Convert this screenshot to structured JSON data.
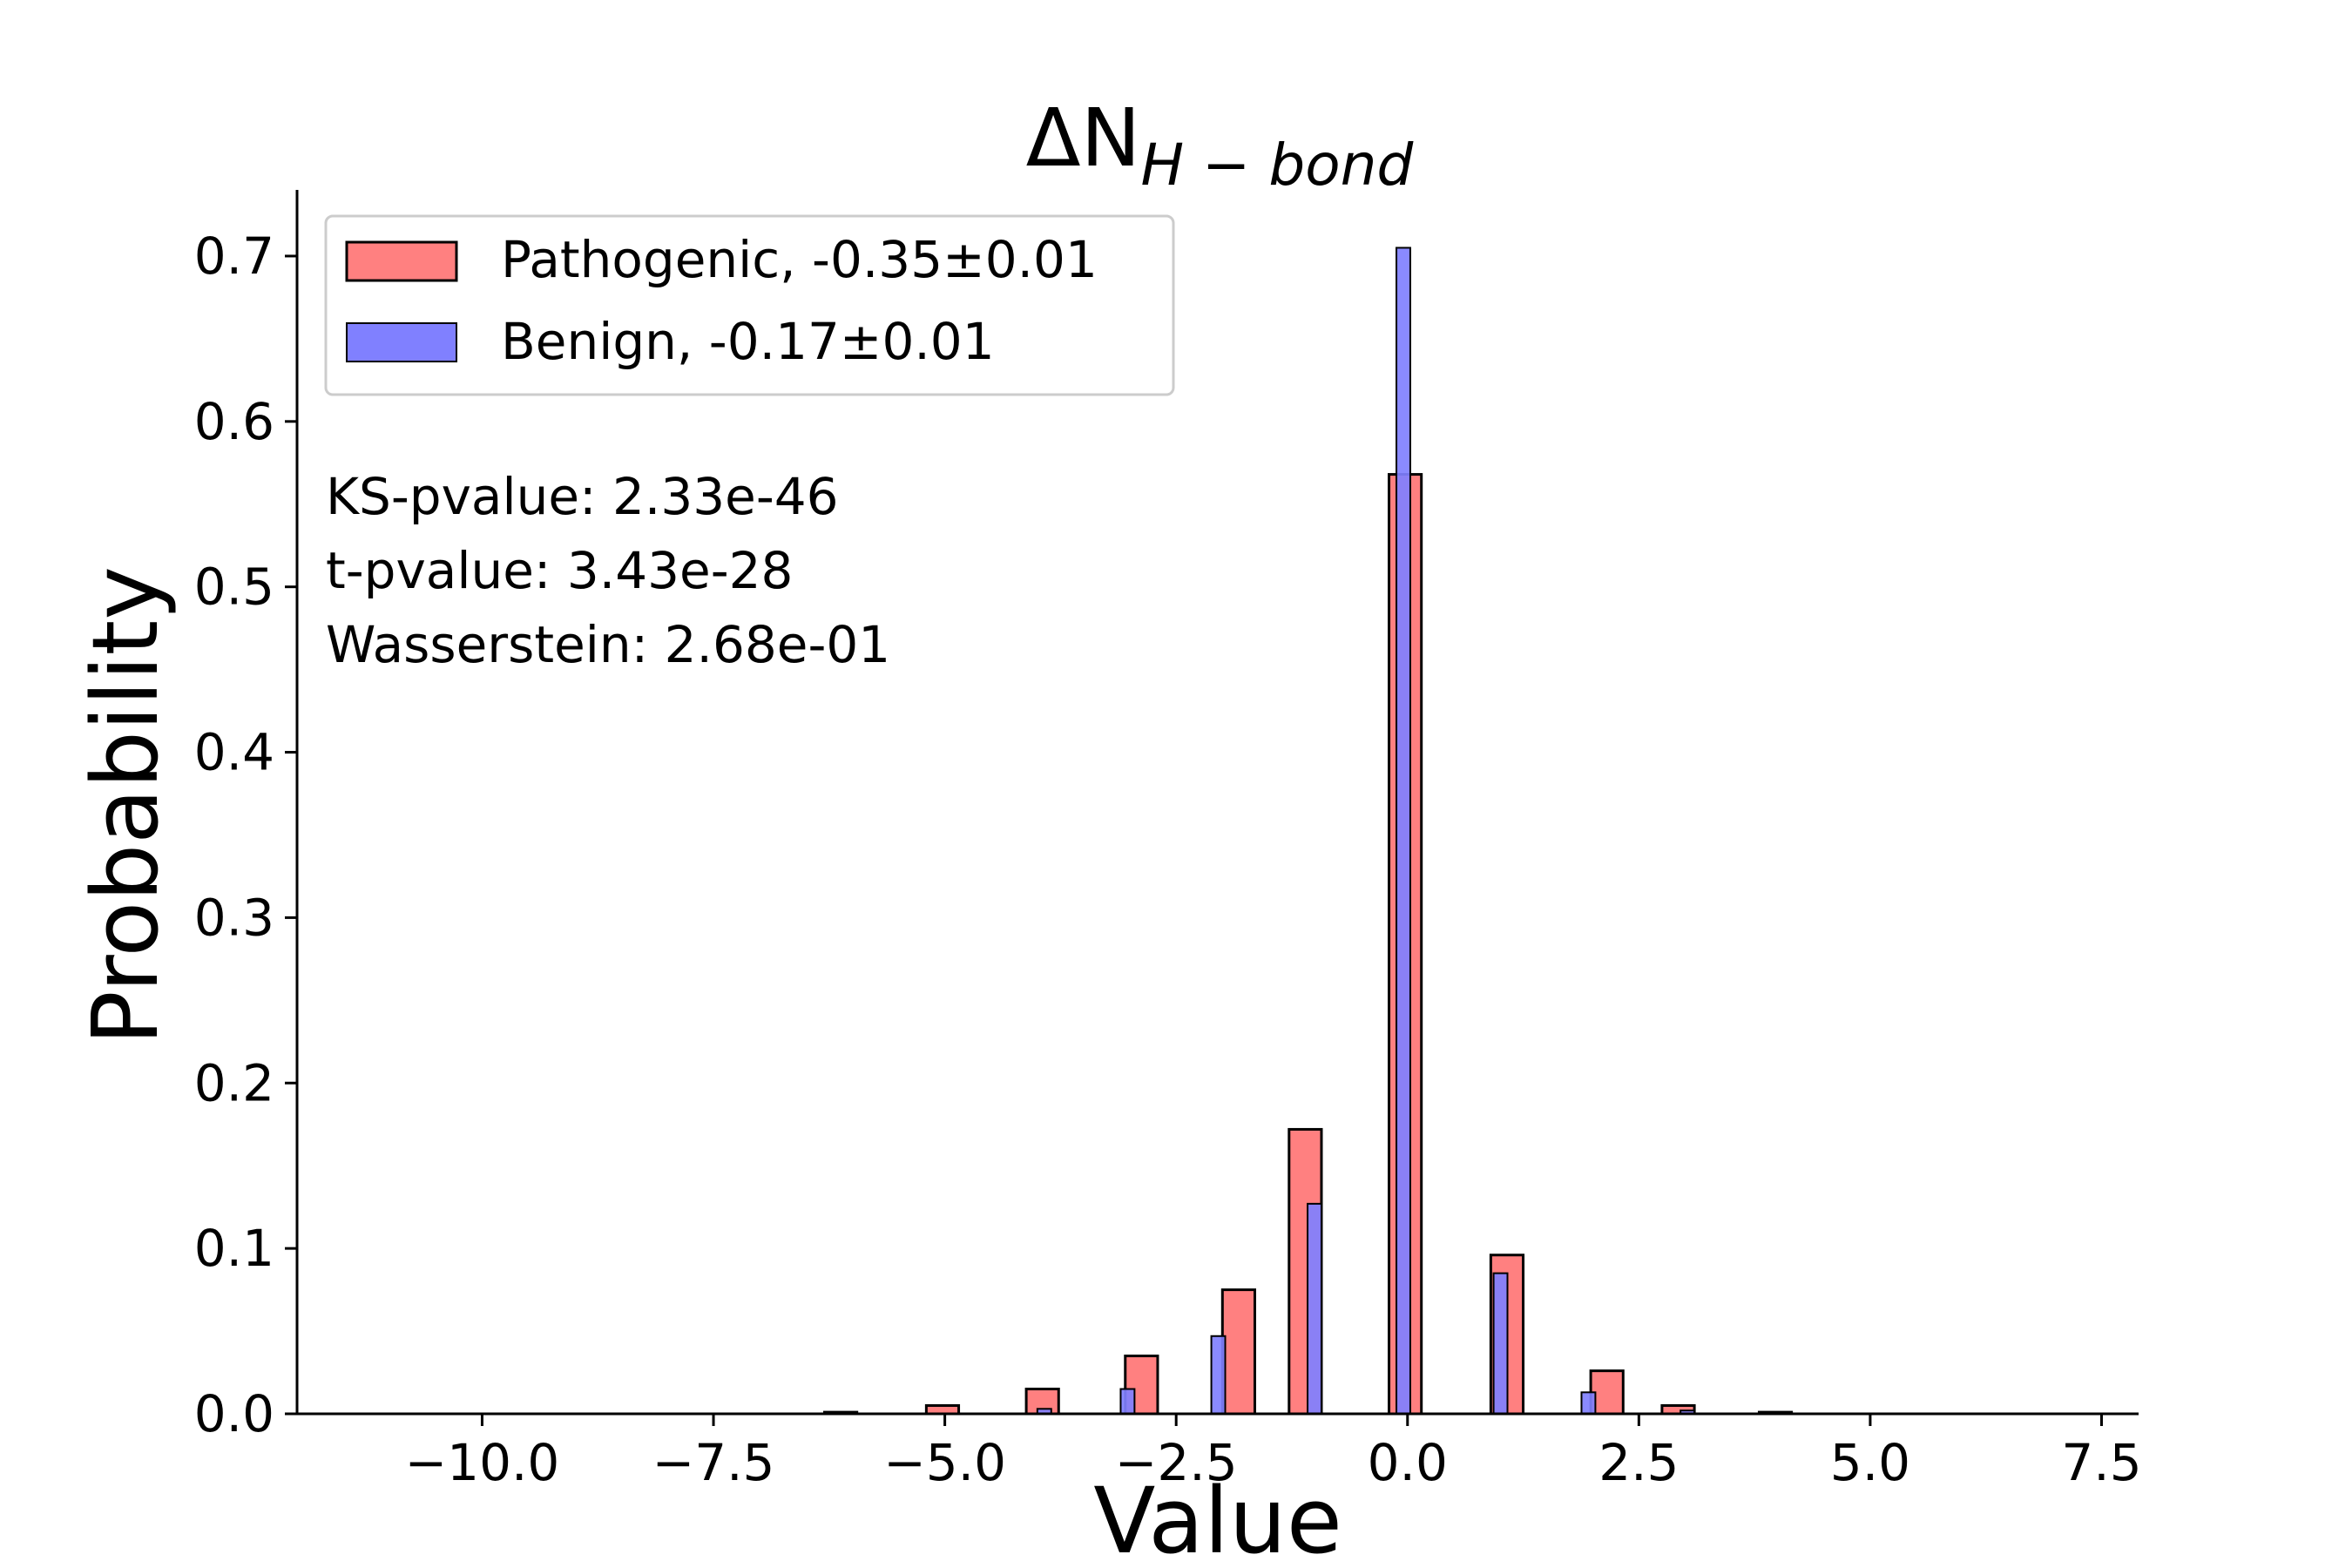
{
  "chart_data": {
    "type": "bar",
    "title": "ΔN",
    "title_subscript": "H − bond",
    "xlabel": "Value",
    "ylabel": "Probability",
    "xlim": [
      -12.0,
      7.9
    ],
    "ylim": [
      0,
      0.74
    ],
    "x_ticks": [
      -10.0,
      -7.5,
      -5.0,
      -2.5,
      0.0,
      2.5,
      5.0,
      7.5
    ],
    "x_tick_labels": [
      "−10.0",
      "−7.5",
      "−5.0",
      "−2.5",
      "0.0",
      "2.5",
      "5.0",
      "7.5"
    ],
    "y_ticks": [
      0.0,
      0.1,
      0.2,
      0.3,
      0.4,
      0.5,
      0.6,
      0.7
    ],
    "y_tick_labels": [
      "0.0",
      "0.1",
      "0.2",
      "0.3",
      "0.4",
      "0.5",
      "0.6",
      "0.7"
    ],
    "grid": false,
    "legend_position": "top-left",
    "series": [
      {
        "name": "Pathogenic, -0.35±0.01",
        "color": "#ff8080",
        "bars": [
          {
            "x0": -11.0,
            "x1": -6.3,
            "y": 0.0
          },
          {
            "x0": -6.3,
            "x1": -5.95,
            "y": 0.001
          },
          {
            "x0": -5.95,
            "x1": -5.2,
            "y": 0.0
          },
          {
            "x0": -5.2,
            "x1": -4.85,
            "y": 0.005
          },
          {
            "x0": -4.85,
            "x1": -4.12,
            "y": 0.0
          },
          {
            "x0": -4.12,
            "x1": -3.77,
            "y": 0.015
          },
          {
            "x0": -3.77,
            "x1": -3.05,
            "y": 0.0
          },
          {
            "x0": -3.05,
            "x1": -2.7,
            "y": 0.035
          },
          {
            "x0": -2.7,
            "x1": -2.0,
            "y": 0.0
          },
          {
            "x0": -2.0,
            "x1": -1.65,
            "y": 0.075
          },
          {
            "x0": -1.65,
            "x1": -1.28,
            "y": 0.0
          },
          {
            "x0": -1.28,
            "x1": -0.93,
            "y": 0.172
          },
          {
            "x0": -0.93,
            "x1": -0.2,
            "y": 0.0
          },
          {
            "x0": -0.2,
            "x1": 0.15,
            "y": 0.568
          },
          {
            "x0": 0.15,
            "x1": 0.9,
            "y": 0.0
          },
          {
            "x0": 0.9,
            "x1": 1.25,
            "y": 0.096
          },
          {
            "x0": 1.25,
            "x1": 1.98,
            "y": 0.0
          },
          {
            "x0": 1.98,
            "x1": 2.33,
            "y": 0.026
          },
          {
            "x0": 2.33,
            "x1": 2.75,
            "y": 0.0
          },
          {
            "x0": 2.75,
            "x1": 3.1,
            "y": 0.005
          },
          {
            "x0": 3.1,
            "x1": 3.8,
            "y": 0.0
          },
          {
            "x0": 3.8,
            "x1": 4.15,
            "y": 0.001
          },
          {
            "x0": 4.15,
            "x1": 7.0,
            "y": 0.0
          }
        ]
      },
      {
        "name": "Benign, -0.17±0.01",
        "color": "#8080ff",
        "bars": [
          {
            "x0": -4.0,
            "x1": -3.85,
            "y": 0.003
          },
          {
            "x0": -3.1,
            "x1": -2.95,
            "y": 0.015
          },
          {
            "x0": -2.12,
            "x1": -1.97,
            "y": 0.047
          },
          {
            "x0": -1.08,
            "x1": -0.93,
            "y": 0.127
          },
          {
            "x0": -0.12,
            "x1": 0.03,
            "y": 0.705
          },
          {
            "x0": 0.93,
            "x1": 1.08,
            "y": 0.085
          },
          {
            "x0": 1.88,
            "x1": 2.03,
            "y": 0.013
          },
          {
            "x0": 2.95,
            "x1": 3.1,
            "y": 0.002
          }
        ]
      }
    ],
    "annotations": [
      "KS-pvalue: 2.33e-46",
      "t-pvalue: 3.43e-28",
      "Wasserstein: 2.68e-01"
    ]
  }
}
